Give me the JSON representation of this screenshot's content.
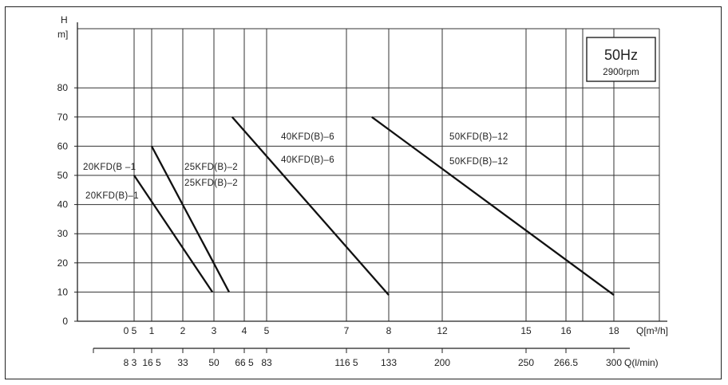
{
  "chart_data": {
    "type": "line",
    "y_axis": {
      "label_top": "H",
      "label_unit": "m]",
      "ticks": [
        0,
        10,
        20,
        30,
        40,
        50,
        60,
        70,
        80
      ],
      "ylim": [
        0,
        95
      ]
    },
    "x_axis_primary": {
      "label": "Q[m³/h]",
      "ticks": [
        "0 5",
        "1",
        "2",
        "3",
        "4",
        "5",
        "7",
        "8",
        "12",
        "15",
        "16",
        "18"
      ]
    },
    "x_axis_secondary": {
      "label": "Q(l/min)",
      "ticks": [
        "8 3",
        "16 5",
        "33",
        "50",
        "66 5",
        "83",
        "116 5",
        "133",
        "200",
        "250",
        "266.5",
        "300"
      ]
    },
    "info_box": {
      "frequency": "50Hz",
      "speed": "2900rpm"
    },
    "series": [
      {
        "labels": [
          "20KFD(B –1",
          "20KFD(B)–1"
        ],
        "x": [
          0.5,
          2.95
        ],
        "y": [
          50,
          10
        ]
      },
      {
        "labels": [
          "25KFD(B)–2",
          "25KFD(B)–2"
        ],
        "x": [
          1.0,
          3.5
        ],
        "y": [
          60,
          10
        ]
      },
      {
        "labels": [
          "40KFD(B)–6",
          "40KFD(B)–6"
        ],
        "x": [
          3.6,
          8.0
        ],
        "y": [
          70,
          9
        ]
      },
      {
        "labels": [
          "50KFD(B)–12",
          "50KFD(B)–12"
        ],
        "x": [
          7.6,
          18.0
        ],
        "y": [
          70,
          9
        ]
      }
    ]
  }
}
